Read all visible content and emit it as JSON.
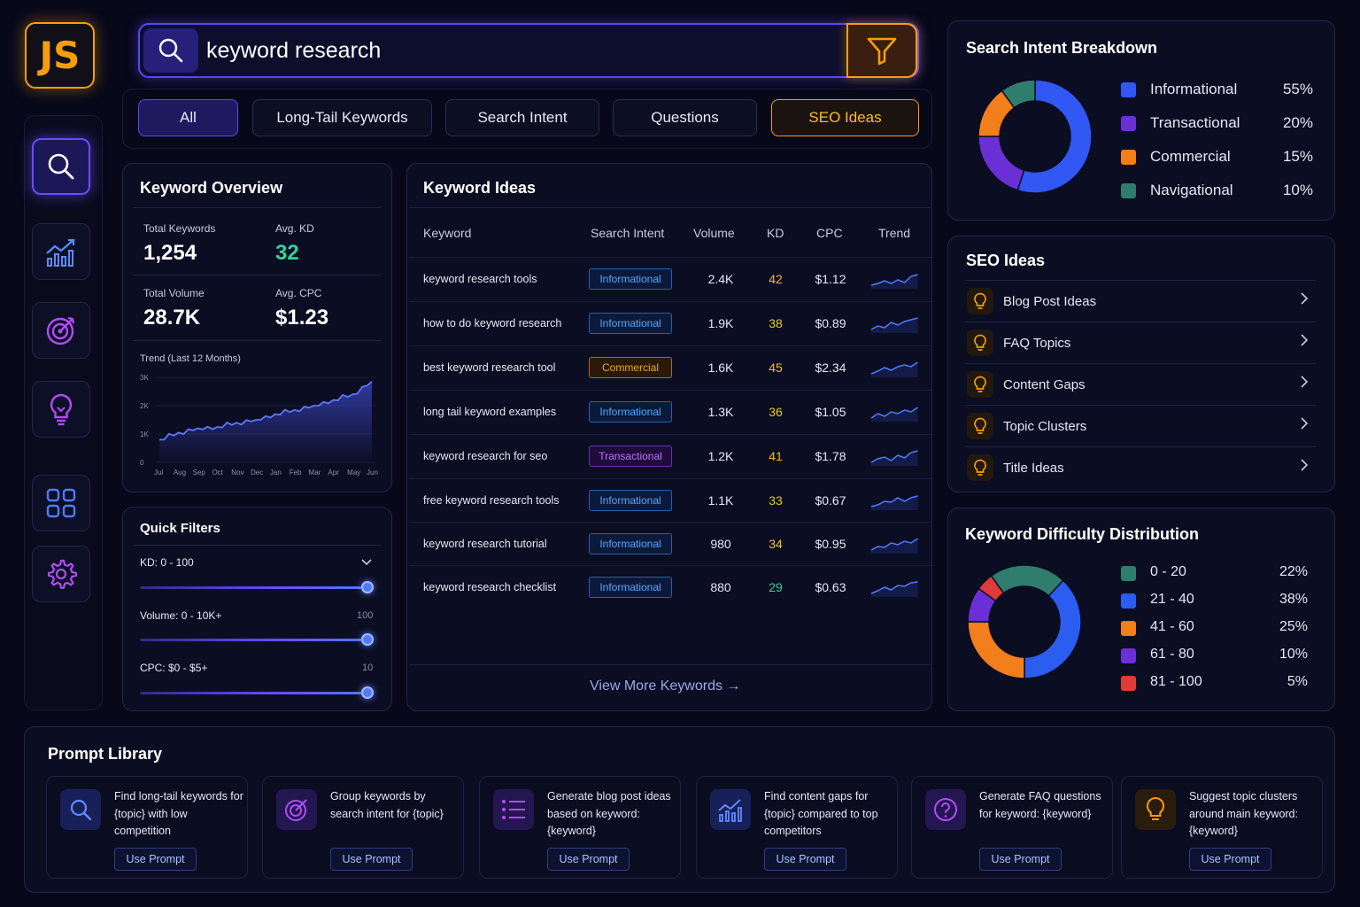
{
  "logo": "JS",
  "search": {
    "value": "keyword research",
    "placeholder": ""
  },
  "tabs": [
    {
      "label": "All"
    },
    {
      "label": "Long-Tail Keywords"
    },
    {
      "label": "Search Intent"
    },
    {
      "label": "Questions"
    },
    {
      "label": "SEO Ideas"
    }
  ],
  "nav": [
    {
      "icon": "search-icon"
    },
    {
      "icon": "analytics-icon"
    },
    {
      "icon": "target-icon"
    },
    {
      "icon": "lightbulb-icon"
    },
    {
      "icon": "grid-icon"
    },
    {
      "icon": "gear-icon"
    }
  ],
  "overview": {
    "title": "Keyword Overview",
    "total_keywords_label": "Total Keywords",
    "total_keywords": "1,254",
    "avg_kd_label": "Avg. KD",
    "avg_kd": "32",
    "total_volume_label": "Total Volume",
    "total_volume": "28.7K",
    "avg_cpc_label": "Avg. CPC",
    "avg_cpc": "$1.23",
    "trend_label": "Trend (Last 12 Months)",
    "chart_data": {
      "type": "area",
      "x": [
        "Jul",
        "Aug",
        "Sep",
        "Oct",
        "Nov",
        "Dec",
        "Jan",
        "Feb",
        "Mar",
        "Apr",
        "May",
        "Jun"
      ],
      "yticks": [
        "3K",
        "2K",
        "1K",
        "0"
      ],
      "ylim": [
        0,
        3000
      ],
      "values": [
        800,
        1050,
        1200,
        1250,
        1400,
        1500,
        1700,
        1850,
        2000,
        2200,
        2400,
        2850
      ]
    }
  },
  "filters": {
    "title": "Quick Filters",
    "items": [
      {
        "label": "KD: 0 - 100",
        "value": "",
        "level": 1.0
      },
      {
        "label": "Volume: 0 - 10K+",
        "value": "100",
        "level": 1.0
      },
      {
        "label": "CPC: $0 - $5+",
        "value": "10",
        "level": 1.0
      }
    ]
  },
  "ideas": {
    "title": "Keyword Ideas",
    "columns": [
      "Keyword",
      "Search Intent",
      "Volume",
      "KD",
      "CPC",
      "Trend"
    ],
    "rows": [
      {
        "keyword": "keyword research tools",
        "intent": "Informational",
        "volume": "2.4K",
        "kd": "42",
        "cpc": "$1.12"
      },
      {
        "keyword": "how to do keyword research",
        "intent": "Informational",
        "volume": "1.9K",
        "kd": "38",
        "cpc": "$0.89"
      },
      {
        "keyword": "best keyword research tool",
        "intent": "Commercial",
        "volume": "1.6K",
        "kd": "45",
        "cpc": "$2.34"
      },
      {
        "keyword": "long tail keyword examples",
        "intent": "Informational",
        "volume": "1.3K",
        "kd": "36",
        "cpc": "$1.05"
      },
      {
        "keyword": "keyword research for seo",
        "intent": "Transactional",
        "volume": "1.2K",
        "kd": "41",
        "cpc": "$1.78"
      },
      {
        "keyword": "free keyword research tools",
        "intent": "Informational",
        "volume": "1.1K",
        "kd": "33",
        "cpc": "$0.67"
      },
      {
        "keyword": "keyword research tutorial",
        "intent": "Informational",
        "volume": "980",
        "kd": "34",
        "cpc": "$0.95"
      },
      {
        "keyword": "keyword research checklist",
        "intent": "Informational",
        "volume": "880",
        "kd": "29",
        "cpc": "$0.63"
      }
    ],
    "view_more": "View More Keywords →"
  },
  "intent": {
    "title": "Search Intent Breakdown",
    "chart_data": {
      "type": "pie",
      "categories": [
        "Informational",
        "Transactional",
        "Commercial",
        "Navigational"
      ],
      "values": [
        55,
        20,
        15,
        10
      ],
      "labels": [
        "55%",
        "20%",
        "15%",
        "10%"
      ],
      "colors": [
        "#3157f5",
        "#6b2fd6",
        "#f27e1c",
        "#2f7d6c"
      ]
    }
  },
  "seo_ideas": {
    "title": "SEO Ideas",
    "items": [
      "Blog Post Ideas",
      "FAQ Topics",
      "Content Gaps",
      "Topic Clusters",
      "Title Ideas"
    ]
  },
  "difficulty": {
    "title": "Keyword Difficulty Distribution",
    "chart_data": {
      "type": "pie",
      "categories": [
        "0 - 20",
        "21 - 40",
        "41 - 60",
        "61 - 80",
        "81 - 100"
      ],
      "values": [
        22,
        38,
        25,
        10,
        5
      ],
      "labels": [
        "22%",
        "38%",
        "25%",
        "10%",
        "5%"
      ],
      "colors": [
        "#2f7d6c",
        "#2b5ef0",
        "#f27e1c",
        "#6b2fd6",
        "#e03a3a"
      ]
    }
  },
  "prompts": {
    "title": "Prompt Library",
    "button_label": "Use Prompt",
    "cards": [
      {
        "icon": "search-icon",
        "text": "Find long-tail keywords for {topic} with low competition"
      },
      {
        "icon": "target-icon",
        "text": "Group keywords by search intent for {topic}"
      },
      {
        "icon": "list-icon",
        "text": "Generate blog post ideas based on keyword: {keyword}"
      },
      {
        "icon": "analytics-icon",
        "text": "Find content gaps for {topic} compared to top competitors"
      },
      {
        "icon": "question-icon",
        "text": "Generate FAQ questions for keyword: {keyword}"
      },
      {
        "icon": "lightbulb-icon",
        "text": "Suggest topic clusters around main keyword: {keyword}"
      }
    ]
  },
  "colors": {
    "accent": "#5b46f0",
    "orange": "#f59e0b",
    "blue": "#4f7bff",
    "green": "#34d399",
    "yellow": "#f5b82e"
  }
}
